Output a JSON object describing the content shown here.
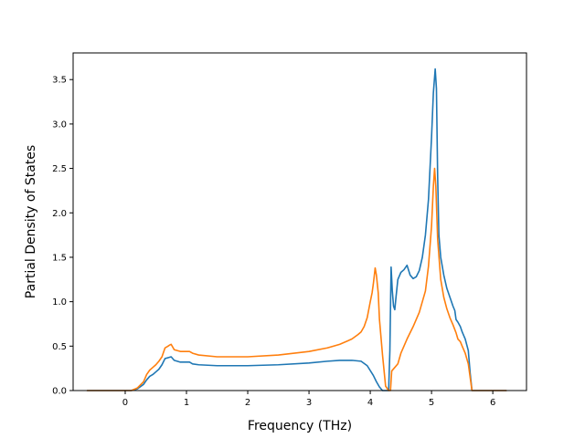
{
  "chart_data": {
    "type": "line",
    "title": "",
    "xlabel": "Frequency (THz)",
    "ylabel": "Partial Density of States",
    "xlim": [
      -0.85,
      6.55
    ],
    "ylim": [
      0.0,
      3.8
    ],
    "xticks": [
      0,
      1,
      2,
      3,
      4,
      5,
      6
    ],
    "yticks": [
      0.0,
      0.5,
      1.0,
      1.5,
      2.0,
      2.5,
      3.0,
      3.5
    ],
    "xtick_labels": [
      "0",
      "1",
      "2",
      "3",
      "4",
      "5",
      "6"
    ],
    "ytick_labels": [
      "0.0",
      "0.5",
      "1.0",
      "1.5",
      "2.0",
      "2.5",
      "3.0",
      "3.5"
    ],
    "grid": false,
    "legend": "none",
    "series": [
      {
        "color": "#1f77b4",
        "x": [
          -0.62,
          0.0,
          0.1,
          0.2,
          0.3,
          0.35,
          0.4,
          0.45,
          0.5,
          0.55,
          0.6,
          0.65,
          0.7,
          0.75,
          0.8,
          0.9,
          1.0,
          1.05,
          1.1,
          1.2,
          1.5,
          2.0,
          2.5,
          3.0,
          3.3,
          3.5,
          3.7,
          3.85,
          3.95,
          4.05,
          4.1,
          4.15,
          4.2,
          4.25,
          4.3,
          4.32,
          4.34,
          4.36,
          4.38,
          4.4,
          4.42,
          4.45,
          4.5,
          4.55,
          4.6,
          4.65,
          4.7,
          4.75,
          4.8,
          4.85,
          4.9,
          4.95,
          5.0,
          5.03,
          5.06,
          5.08,
          5.1,
          5.12,
          5.15,
          5.2,
          5.25,
          5.3,
          5.35,
          5.38,
          5.4,
          5.43,
          5.47,
          5.5,
          5.55,
          5.6,
          5.63,
          5.66,
          5.7,
          5.8,
          6.0,
          6.22
        ],
        "y": [
          0.0,
          0.0,
          0.0,
          0.02,
          0.07,
          0.12,
          0.16,
          0.18,
          0.21,
          0.24,
          0.29,
          0.36,
          0.37,
          0.38,
          0.34,
          0.32,
          0.32,
          0.32,
          0.3,
          0.29,
          0.28,
          0.28,
          0.29,
          0.31,
          0.33,
          0.34,
          0.34,
          0.33,
          0.28,
          0.17,
          0.1,
          0.04,
          0.0,
          0.0,
          0.0,
          0.45,
          1.39,
          1.12,
          0.95,
          0.91,
          1.05,
          1.25,
          1.33,
          1.36,
          1.41,
          1.3,
          1.26,
          1.28,
          1.35,
          1.5,
          1.75,
          2.15,
          2.85,
          3.35,
          3.62,
          3.4,
          2.4,
          1.75,
          1.5,
          1.3,
          1.15,
          1.05,
          0.95,
          0.9,
          0.8,
          0.77,
          0.72,
          0.66,
          0.58,
          0.45,
          0.2,
          0.0,
          0.0,
          0.0,
          0.0,
          0.0
        ]
      },
      {
        "color": "#ff7f0e",
        "x": [
          -0.62,
          0.0,
          0.1,
          0.2,
          0.3,
          0.35,
          0.4,
          0.45,
          0.5,
          0.55,
          0.6,
          0.65,
          0.7,
          0.72,
          0.75,
          0.8,
          0.9,
          1.0,
          1.05,
          1.1,
          1.2,
          1.5,
          2.0,
          2.5,
          3.0,
          3.3,
          3.5,
          3.7,
          3.8,
          3.85,
          3.9,
          3.95,
          4.0,
          4.03,
          4.05,
          4.08,
          4.1,
          4.13,
          4.15,
          4.2,
          4.25,
          4.3,
          4.33,
          4.35,
          4.4,
          4.45,
          4.5,
          4.6,
          4.7,
          4.8,
          4.9,
          4.95,
          5.0,
          5.03,
          5.05,
          5.07,
          5.1,
          5.15,
          5.2,
          5.25,
          5.3,
          5.35,
          5.4,
          5.43,
          5.47,
          5.5,
          5.55,
          5.6,
          5.63,
          5.66,
          5.7,
          5.8,
          6.0,
          6.22
        ],
        "y": [
          0.0,
          0.0,
          0.0,
          0.03,
          0.1,
          0.18,
          0.23,
          0.26,
          0.29,
          0.33,
          0.38,
          0.48,
          0.5,
          0.51,
          0.52,
          0.46,
          0.44,
          0.44,
          0.44,
          0.42,
          0.4,
          0.38,
          0.38,
          0.4,
          0.44,
          0.48,
          0.52,
          0.58,
          0.63,
          0.66,
          0.72,
          0.82,
          1.0,
          1.1,
          1.2,
          1.38,
          1.3,
          1.1,
          0.8,
          0.4,
          0.05,
          0.0,
          0.0,
          0.22,
          0.26,
          0.3,
          0.42,
          0.58,
          0.72,
          0.88,
          1.12,
          1.4,
          1.85,
          2.3,
          2.5,
          2.3,
          1.7,
          1.25,
          1.05,
          0.92,
          0.82,
          0.74,
          0.65,
          0.58,
          0.55,
          0.5,
          0.42,
          0.3,
          0.15,
          0.0,
          0.0,
          0.0,
          0.0,
          0.0
        ]
      }
    ]
  }
}
